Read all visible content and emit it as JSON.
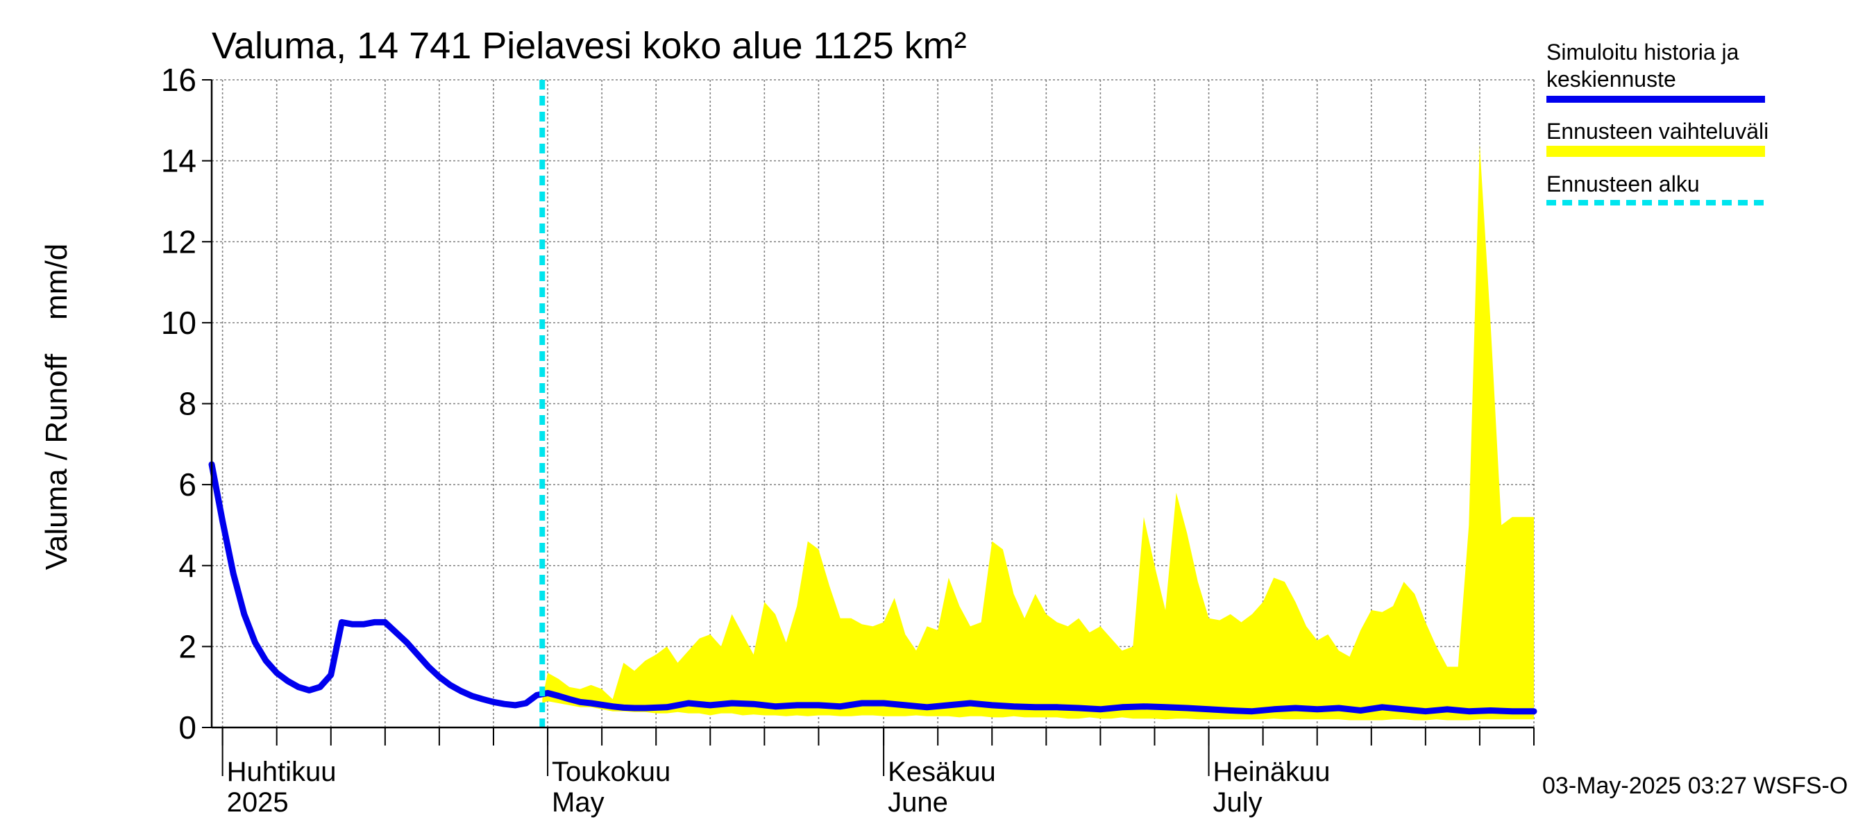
{
  "colors": {
    "background": "#ffffff",
    "simulated": "#0000ee",
    "range": "#ffff00",
    "forecast_start": "#00e5ee",
    "grid": "#808080",
    "axis": "#000000"
  },
  "chart_data": {
    "type": "line",
    "title": "Valuma, 14 741 Pielavesi koko alue 1125 km²",
    "ylabel": "Valuma / Runoff    mm/d",
    "xlabel": "",
    "ylim": [
      0,
      16
    ],
    "yticks": [
      0,
      2,
      4,
      6,
      8,
      10,
      12,
      14,
      16
    ],
    "x_unit": "day-of-year 2025",
    "xlim": [
      90,
      212
    ],
    "x_gridlines": [
      91,
      96,
      101,
      106,
      111,
      116,
      121,
      126,
      131,
      136,
      141,
      146,
      152,
      157,
      162,
      167,
      172,
      177,
      182,
      187,
      192,
      197,
      202,
      207,
      212
    ],
    "month_starts": [
      91,
      121,
      152,
      182
    ],
    "month_labels": [
      {
        "at": 91,
        "fi": "Huhtikuu",
        "en": "2025"
      },
      {
        "at": 121,
        "fi": "Toukokuu",
        "en": "May"
      },
      {
        "at": 152,
        "fi": "Kesäkuu",
        "en": "June"
      },
      {
        "at": 182,
        "fi": "Heinäkuu",
        "en": "July"
      }
    ],
    "forecast_start_x": 120.5,
    "footer": "03-May-2025 03:27 WSFS-O",
    "legend_position": "right",
    "legend": [
      {
        "label_lines": [
          "Simuloitu historia ja",
          "keskiennuste"
        ],
        "kind": "line"
      },
      {
        "label_lines": [
          "Ennusteen vaihteluväli"
        ],
        "kind": "band"
      },
      {
        "label_lines": [
          "Ennusteen alku"
        ],
        "kind": "dashed"
      }
    ],
    "series": [
      {
        "name": "Simuloitu historia ja keskiennuste",
        "x": [
          90,
          91,
          92,
          93,
          94,
          95,
          96,
          97,
          98,
          99,
          100,
          101,
          102,
          103,
          104,
          105,
          106,
          107,
          108,
          109,
          110,
          111,
          112,
          113,
          114,
          115,
          116,
          117,
          118,
          119,
          120,
          121,
          122,
          123,
          124,
          125,
          126,
          127,
          128,
          129,
          130,
          132,
          134,
          136,
          138,
          140,
          142,
          144,
          146,
          148,
          150,
          152,
          154,
          156,
          158,
          160,
          162,
          164,
          166,
          168,
          170,
          172,
          174,
          176,
          178,
          180,
          182,
          184,
          186,
          188,
          190,
          192,
          194,
          196,
          198,
          200,
          202,
          204,
          206,
          208,
          210,
          212
        ],
        "y": [
          6.5,
          5.1,
          3.8,
          2.8,
          2.1,
          1.65,
          1.35,
          1.15,
          1.0,
          0.92,
          1.0,
          1.3,
          2.6,
          2.55,
          2.55,
          2.6,
          2.6,
          2.35,
          2.1,
          1.8,
          1.5,
          1.25,
          1.05,
          0.9,
          0.78,
          0.7,
          0.63,
          0.58,
          0.55,
          0.6,
          0.8,
          0.85,
          0.78,
          0.7,
          0.63,
          0.6,
          0.56,
          0.52,
          0.49,
          0.48,
          0.48,
          0.5,
          0.6,
          0.55,
          0.6,
          0.58,
          0.52,
          0.55,
          0.55,
          0.52,
          0.6,
          0.6,
          0.55,
          0.5,
          0.55,
          0.6,
          0.55,
          0.52,
          0.5,
          0.5,
          0.48,
          0.45,
          0.5,
          0.52,
          0.5,
          0.48,
          0.45,
          0.42,
          0.4,
          0.45,
          0.48,
          0.45,
          0.48,
          0.42,
          0.5,
          0.45,
          0.4,
          0.45,
          0.4,
          0.42,
          0.4,
          0.4
        ]
      },
      {
        "name": "Ennusteen vaihteluväli",
        "x": [
          120.5,
          121,
          122,
          123,
          124,
          125,
          126,
          127,
          128,
          129,
          130,
          131,
          132,
          133,
          134,
          135,
          136,
          137,
          138,
          139,
          140,
          141,
          142,
          143,
          144,
          145,
          146,
          147,
          148,
          149,
          150,
          151,
          152,
          153,
          154,
          155,
          156,
          157,
          158,
          159,
          160,
          161,
          162,
          163,
          164,
          165,
          166,
          167,
          168,
          169,
          170,
          171,
          172,
          173,
          174,
          175,
          176,
          177,
          178,
          179,
          180,
          181,
          182,
          183,
          184,
          185,
          186,
          187,
          188,
          189,
          190,
          191,
          192,
          193,
          194,
          195,
          196,
          197,
          198,
          199,
          200,
          201,
          202,
          203,
          204,
          205,
          206,
          207,
          208,
          209,
          210,
          211,
          212
        ],
        "upper": [
          0.7,
          1.35,
          1.2,
          1.0,
          0.95,
          1.05,
          0.95,
          0.7,
          1.6,
          1.4,
          1.65,
          1.8,
          2.0,
          1.6,
          1.9,
          2.2,
          2.3,
          2.0,
          2.8,
          2.3,
          1.8,
          3.1,
          2.8,
          2.1,
          3.0,
          4.6,
          4.4,
          3.5,
          2.7,
          2.7,
          2.55,
          2.5,
          2.6,
          3.2,
          2.3,
          1.9,
          2.5,
          2.4,
          3.7,
          3.0,
          2.5,
          2.6,
          4.6,
          4.4,
          3.3,
          2.7,
          3.3,
          2.8,
          2.6,
          2.5,
          2.7,
          2.35,
          2.5,
          2.2,
          1.9,
          2.0,
          5.2,
          4.0,
          2.9,
          5.8,
          4.8,
          3.6,
          2.7,
          2.65,
          2.8,
          2.6,
          2.8,
          3.1,
          3.7,
          3.6,
          3.1,
          2.5,
          2.15,
          2.3,
          1.9,
          1.75,
          2.4,
          2.9,
          2.85,
          3.0,
          3.6,
          3.3,
          2.6,
          2.0,
          1.5,
          1.5,
          5.0,
          14.4,
          10.0,
          5.0,
          5.2,
          5.2,
          5.2
        ],
        "lower": [
          0.6,
          0.65,
          0.6,
          0.55,
          0.5,
          0.5,
          0.45,
          0.4,
          0.4,
          0.38,
          0.38,
          0.35,
          0.35,
          0.38,
          0.35,
          0.35,
          0.3,
          0.35,
          0.35,
          0.3,
          0.32,
          0.3,
          0.3,
          0.28,
          0.3,
          0.28,
          0.3,
          0.3,
          0.28,
          0.28,
          0.3,
          0.3,
          0.28,
          0.28,
          0.28,
          0.3,
          0.28,
          0.28,
          0.28,
          0.25,
          0.28,
          0.28,
          0.25,
          0.25,
          0.28,
          0.25,
          0.25,
          0.25,
          0.25,
          0.22,
          0.22,
          0.25,
          0.22,
          0.22,
          0.25,
          0.22,
          0.22,
          0.22,
          0.2,
          0.22,
          0.22,
          0.2,
          0.2,
          0.2,
          0.2,
          0.2,
          0.2,
          0.2,
          0.22,
          0.2,
          0.2,
          0.2,
          0.2,
          0.2,
          0.2,
          0.18,
          0.18,
          0.18,
          0.18,
          0.2,
          0.2,
          0.18,
          0.18,
          0.2,
          0.18,
          0.18,
          0.18,
          0.2,
          0.2,
          0.2,
          0.2,
          0.2,
          0.2
        ]
      }
    ]
  }
}
